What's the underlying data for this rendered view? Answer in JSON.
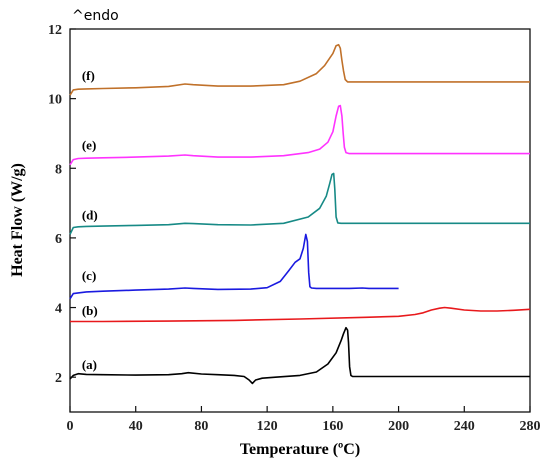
{
  "chart_data": {
    "type": "line",
    "corner_label": "^endo",
    "xlabel": "Temperature (ºC)",
    "ylabel": "Heat Flow (W/g)",
    "xlim": [
      0,
      280
    ],
    "ylim": [
      1,
      12
    ],
    "xticks": [
      0,
      40,
      80,
      120,
      160,
      200,
      240,
      280
    ],
    "yticks": [
      2,
      4,
      6,
      8,
      10,
      12
    ],
    "grid": false,
    "legend": "none",
    "series": [
      {
        "label": "(a)",
        "label_pos": [
          6,
          2.35
        ],
        "color": "#000000",
        "x": [
          0,
          2,
          5,
          10,
          20,
          40,
          60,
          68,
          72,
          80,
          90,
          100,
          106,
          109,
          111,
          113,
          117,
          125,
          140,
          150,
          157,
          162,
          165,
          166.5,
          168,
          169,
          169.5,
          170.2,
          171,
          172,
          180,
          200,
          240,
          280
        ],
        "y": [
          1.95,
          2.05,
          2.1,
          2.08,
          2.07,
          2.06,
          2.07,
          2.1,
          2.13,
          2.09,
          2.07,
          2.05,
          2.02,
          1.92,
          1.82,
          1.92,
          1.97,
          2.0,
          2.05,
          2.15,
          2.38,
          2.7,
          3.05,
          3.25,
          3.42,
          3.35,
          3.0,
          2.3,
          2.05,
          2.02,
          2.02,
          2.02,
          2.02,
          2.02
        ]
      },
      {
        "label": "(b)",
        "label_pos": [
          6,
          3.9
        ],
        "color": "#e8191c",
        "x": [
          0,
          20,
          60,
          100,
          140,
          180,
          200,
          210,
          215,
          220,
          225,
          228,
          232,
          240,
          250,
          260,
          270,
          280
        ],
        "y": [
          3.6,
          3.6,
          3.61,
          3.63,
          3.67,
          3.72,
          3.75,
          3.8,
          3.85,
          3.93,
          3.98,
          4.0,
          3.98,
          3.93,
          3.9,
          3.9,
          3.92,
          3.95
        ]
      },
      {
        "label": "(c)",
        "label_pos": [
          6,
          4.9
        ],
        "color": "#1a1ae0",
        "x": [
          0,
          2,
          5,
          10,
          20,
          40,
          60,
          70,
          75,
          90,
          110,
          120,
          128,
          133,
          137,
          140,
          142,
          143.5,
          144.5,
          145.3,
          146,
          147,
          150,
          160,
          170,
          178,
          182,
          200
        ],
        "y": [
          4.25,
          4.4,
          4.42,
          4.45,
          4.47,
          4.5,
          4.53,
          4.56,
          4.55,
          4.52,
          4.53,
          4.57,
          4.75,
          5.05,
          5.3,
          5.4,
          5.7,
          6.1,
          5.9,
          5.0,
          4.6,
          4.56,
          4.55,
          4.55,
          4.55,
          4.56,
          4.55,
          4.55
        ]
      },
      {
        "label": "(d)",
        "label_pos": [
          6,
          6.65
        ],
        "color": "#178a86",
        "x": [
          0,
          2,
          5,
          10,
          20,
          40,
          60,
          70,
          75,
          90,
          110,
          130,
          145,
          152,
          156,
          158,
          159.5,
          160.5,
          161.2,
          162,
          163,
          165,
          170,
          200,
          240,
          280
        ],
        "y": [
          6.1,
          6.3,
          6.32,
          6.33,
          6.34,
          6.36,
          6.38,
          6.42,
          6.41,
          6.38,
          6.37,
          6.42,
          6.6,
          6.85,
          7.2,
          7.55,
          7.82,
          7.85,
          7.4,
          6.6,
          6.43,
          6.42,
          6.42,
          6.42,
          6.42,
          6.42
        ]
      },
      {
        "label": "(e)",
        "label_pos": [
          6,
          8.65
        ],
        "color": "#ff33ff",
        "x": [
          0,
          2,
          5,
          10,
          20,
          40,
          60,
          70,
          75,
          90,
          110,
          130,
          145,
          152,
          157,
          160,
          162,
          163.5,
          164.5,
          165.5,
          166.3,
          167,
          168,
          170,
          200,
          240,
          280
        ],
        "y": [
          8.1,
          8.25,
          8.28,
          8.29,
          8.3,
          8.32,
          8.35,
          8.38,
          8.36,
          8.32,
          8.32,
          8.36,
          8.45,
          8.55,
          8.75,
          9.05,
          9.5,
          9.78,
          9.8,
          9.5,
          9.0,
          8.6,
          8.45,
          8.42,
          8.42,
          8.42,
          8.42
        ]
      },
      {
        "label": "(f)",
        "label_pos": [
          6,
          10.65
        ],
        "color": "#c0712a",
        "x": [
          0,
          2,
          5,
          10,
          20,
          40,
          60,
          70,
          75,
          90,
          110,
          130,
          140,
          150,
          155,
          160,
          162,
          163.5,
          164.5,
          165.5,
          166.5,
          167.5,
          169,
          175,
          200,
          240,
          280
        ],
        "y": [
          10.1,
          10.25,
          10.27,
          10.28,
          10.29,
          10.31,
          10.35,
          10.42,
          10.4,
          10.36,
          10.36,
          10.4,
          10.5,
          10.72,
          10.95,
          11.3,
          11.52,
          11.55,
          11.45,
          11.1,
          10.8,
          10.55,
          10.48,
          10.48,
          10.48,
          10.48,
          10.48
        ]
      }
    ]
  }
}
